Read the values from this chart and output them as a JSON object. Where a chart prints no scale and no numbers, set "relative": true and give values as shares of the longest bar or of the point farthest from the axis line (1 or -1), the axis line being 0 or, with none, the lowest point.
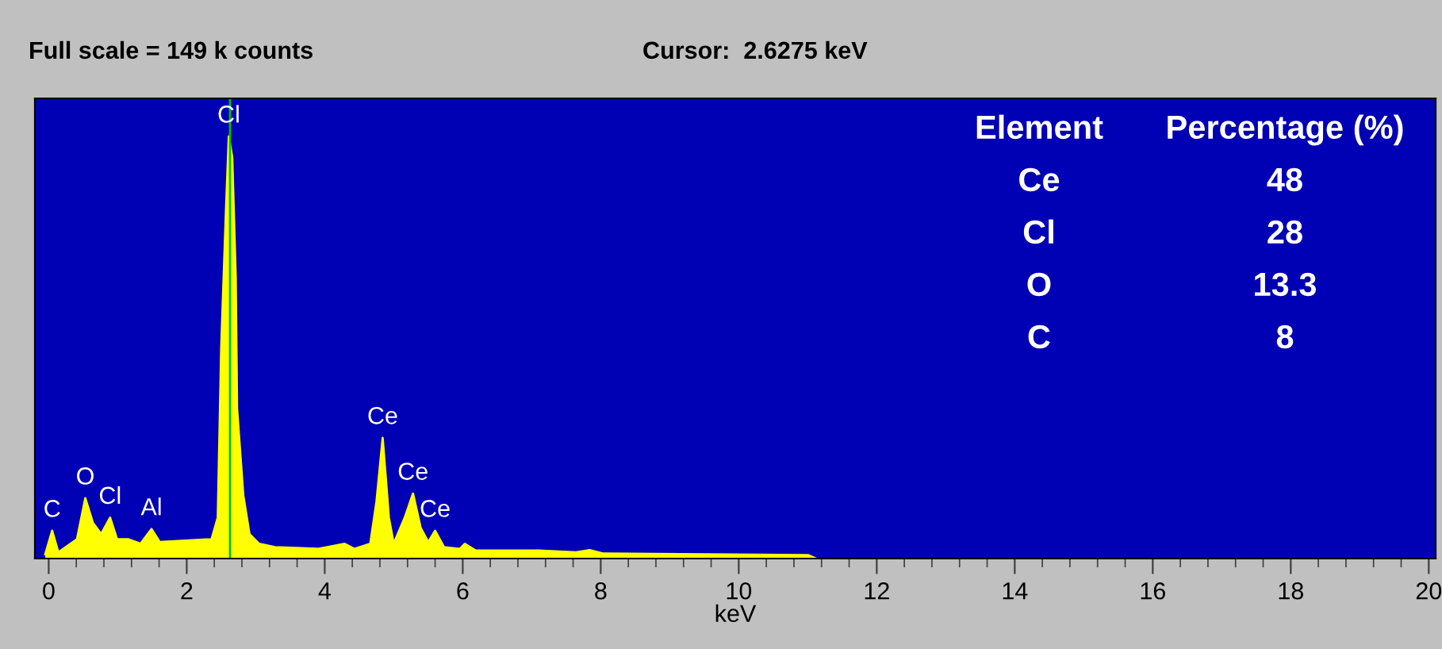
{
  "chart_data": {
    "type": "area",
    "relative": true,
    "xlabel": "keV",
    "xlim": [
      -0.2,
      20.1
    ],
    "xticks": [
      0,
      2,
      4,
      6,
      8,
      10,
      12,
      14,
      16,
      18,
      20
    ],
    "tick_labels": "x",
    "grid": false,
    "legend": false,
    "x": [
      -0.05,
      0.05,
      0.14,
      0.41,
      0.53,
      0.64,
      0.76,
      0.89,
      0.99,
      1.15,
      1.33,
      1.49,
      1.61,
      2.36,
      2.45,
      2.5,
      2.57,
      2.61,
      2.66,
      2.71,
      2.73,
      2.82,
      2.91,
      3.05,
      3.28,
      3.9,
      4.29,
      4.43,
      4.66,
      4.75,
      4.84,
      4.93,
      5.0,
      5.16,
      5.28,
      5.39,
      5.5,
      5.6,
      5.73,
      5.96,
      6.03,
      6.19,
      6.42,
      7.11,
      7.64,
      7.84,
      8.03,
      11.01,
      11.12
    ],
    "series": [
      {
        "color": "#ffff00",
        "values": [
          0.01,
          0.066,
          0.015,
          0.046,
          0.143,
          0.085,
          0.058,
          0.097,
          0.046,
          0.046,
          0.035,
          0.07,
          0.039,
          0.046,
          0.097,
          0.5,
          0.83,
          1.0,
          0.95,
          0.67,
          0.355,
          0.15,
          0.058,
          0.035,
          0.027,
          0.023,
          0.035,
          0.023,
          0.035,
          0.135,
          0.286,
          0.097,
          0.035,
          0.097,
          0.154,
          0.073,
          0.039,
          0.066,
          0.027,
          0.023,
          0.035,
          0.019,
          0.019,
          0.019,
          0.015,
          0.02,
          0.012,
          0.008,
          0.0
        ]
      }
    ],
    "ref_lines": [
      {
        "axis": "x",
        "value": 2.6275,
        "color": "#00c000"
      }
    ],
    "annotations": [
      "Full scale = 149 k counts",
      "Cursor:  2.6275 keV",
      {
        "text": "Cl",
        "x": 2.61,
        "y": 1.0
      },
      {
        "text": "C",
        "x": 0.05,
        "y": 0.066
      },
      {
        "text": "O",
        "x": 0.53,
        "y": 0.143
      },
      {
        "text": "Cl",
        "x": 0.89,
        "y": 0.097
      },
      {
        "text": "Al",
        "x": 1.49,
        "y": 0.07
      },
      {
        "text": "Ce",
        "x": 4.84,
        "y": 0.286
      },
      {
        "text": "Ce",
        "x": 5.28,
        "y": 0.154
      },
      {
        "text": "Ce",
        "x": 5.6,
        "y": 0.066
      },
      "Element",
      "Percentage (%)",
      "Ce",
      "48",
      "Cl",
      "28",
      "O",
      "13.3",
      "C",
      "8"
    ]
  }
}
